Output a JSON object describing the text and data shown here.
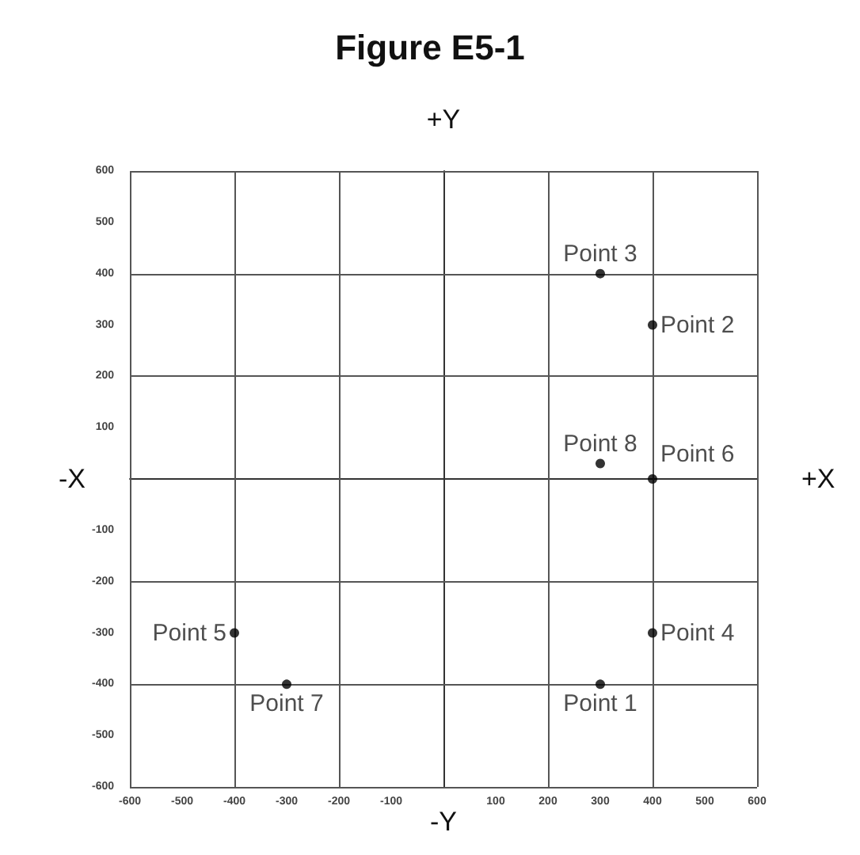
{
  "chart_data": {
    "type": "scatter",
    "title": "Figure E5-1",
    "xlabel": "+X",
    "ylabel": "+Y",
    "annotations": [
      "-X",
      "-Y"
    ],
    "x": [
      300,
      400,
      300,
      400,
      -400,
      400,
      -300,
      300
    ],
    "values": [
      -400,
      300,
      400,
      -300,
      -300,
      0,
      -400,
      30
    ],
    "value_labels": [
      "Point 1",
      "Point 2",
      "Point 3",
      "Point 4",
      "Point 5",
      "Point 6",
      "Point 7",
      "Point 8"
    ],
    "color": "#000000",
    "marker": "circle",
    "grid": true,
    "xlim": [
      -600,
      600
    ],
    "xticks": [
      -600,
      -500,
      -400,
      -300,
      -200,
      -100,
      100,
      200,
      300,
      400,
      500,
      600
    ],
    "ylim": [
      -600,
      600
    ],
    "yticks": [
      -600,
      -500,
      -400,
      -300,
      -200,
      -100,
      100,
      200,
      300,
      400,
      500,
      600
    ]
  }
}
